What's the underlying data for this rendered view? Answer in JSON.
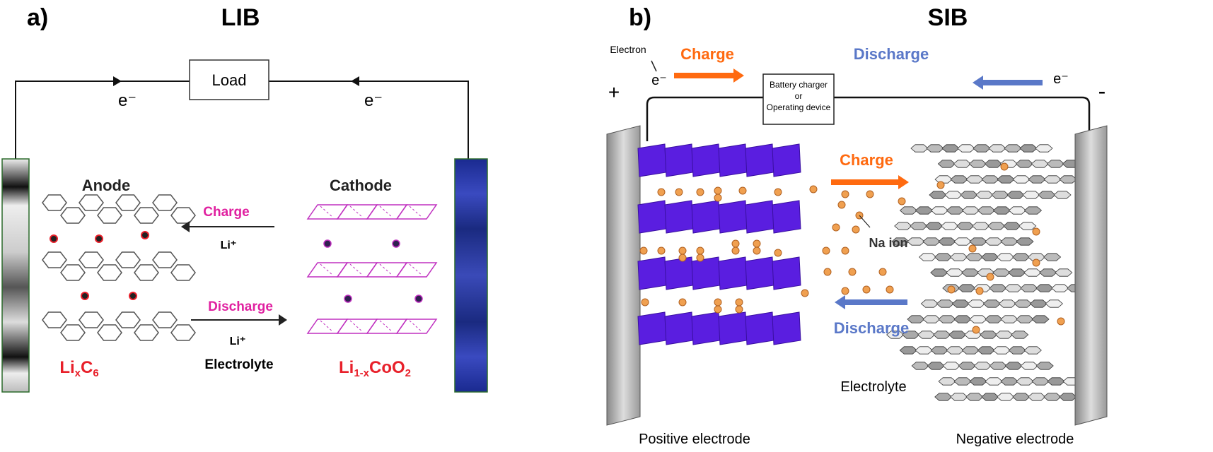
{
  "panel_a": {
    "label": "a)",
    "title": "LIB",
    "load": "Load",
    "electron_left": "e⁻",
    "electron_right": "e⁻",
    "anode": "Anode",
    "cathode": "Cathode",
    "charge": "Charge",
    "charge_ion": "Li⁺",
    "discharge": "Discharge",
    "discharge_ion": "Li⁺",
    "electrolyte": "Electrolyte",
    "anode_formula": "LixC6",
    "cathode_formula": "Li1-xCoO2",
    "colors": {
      "charge": "#e020a0",
      "formula": "#e8202a",
      "cathode_lattice": "#c030c0",
      "collector": "#2a3aa0"
    }
  },
  "panel_b": {
    "label": "b)",
    "title": "SIB",
    "electron_label": "Electron",
    "electron_left": "e⁻",
    "electron_right": "e⁻",
    "plus": "+",
    "minus": "-",
    "charge_top": "Charge",
    "discharge_top": "Discharge",
    "device_line1": "Battery charger",
    "device_line2": "or",
    "device_line3": "Operating device",
    "charge_mid": "Charge",
    "discharge_mid": "Discharge",
    "na_ion": "Na ion",
    "positive_electrode": "Positive electrode",
    "electrolyte": "Electrolyte",
    "negative_electrode": "Negative electrode",
    "colors": {
      "charge": "#ff6a10",
      "discharge": "#5a78c8",
      "cathode_layers": "#5a1ee0",
      "ion": "#f0a050"
    }
  }
}
